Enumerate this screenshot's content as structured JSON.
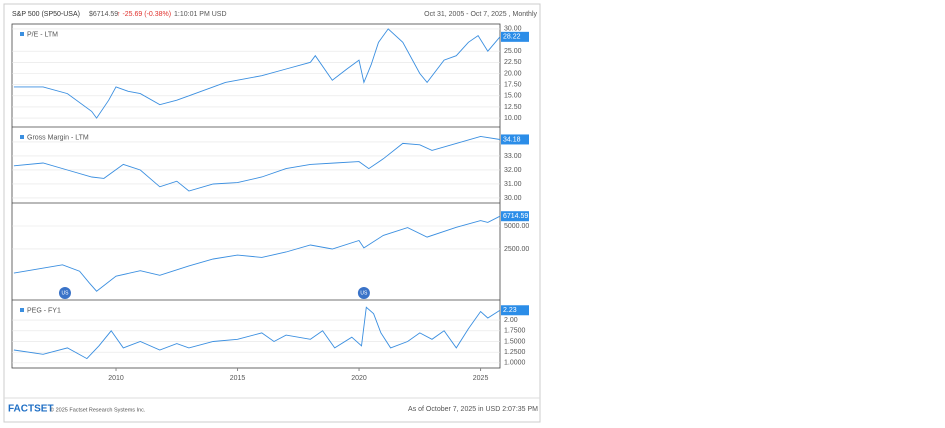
{
  "header": {
    "title": "S&P 500 (SP50-USA)",
    "price": "$6714.59",
    "change": "↑ -25.69 (-0.38%)",
    "time": "1:10:01 PM USD",
    "range": "Oct 31, 2005 - Oct 7, 2025 , Monthly"
  },
  "chart_data": [
    {
      "type": "line",
      "grid": true,
      "xlim": [
        2005.72,
        2025.8
      ],
      "ylim": [
        8,
        31.1
      ],
      "yticks": [
        {
          "value": 30,
          "label": "30.00"
        },
        {
          "value": 25,
          "label": "25.00"
        },
        {
          "value": 22.5,
          "label": "22.50"
        },
        {
          "value": 20,
          "label": "20.00"
        },
        {
          "value": 17.5,
          "label": "17.50"
        },
        {
          "value": 15,
          "label": "15.00"
        },
        {
          "value": 12.5,
          "label": "12.50"
        },
        {
          "value": 10,
          "label": "10.00"
        }
      ],
      "x": [
        2005.8,
        2007,
        2008,
        2009,
        2009.2,
        2009.7,
        2010,
        2010.5,
        2011,
        2011.8,
        2012.5,
        2013,
        2014,
        2014.5,
        2015,
        2016,
        2017,
        2018,
        2018.2,
        2018.9,
        2019.5,
        2020,
        2020.2,
        2020.5,
        2020.8,
        2021.2,
        2021.8,
        2022.5,
        2022.8,
        2023.5,
        2024,
        2024.5,
        2024.9,
        2025.3,
        2025.8
      ],
      "series": [
        {
          "name": "P/E - LTM",
          "color": "#3b8fe0",
          "values": [
            17,
            17,
            15.5,
            11.5,
            10,
            14,
            17,
            16,
            15.5,
            13,
            14,
            15,
            17,
            18,
            18.5,
            19.5,
            21,
            22.5,
            24,
            18.5,
            21,
            23,
            18,
            22,
            27,
            30,
            27,
            20,
            18,
            23,
            24,
            27,
            28.5,
            25,
            28.22
          ]
        }
      ]
    },
    {
      "type": "line",
      "grid": true,
      "xlim": [
        2005.72,
        2025.8
      ],
      "ylim": [
        29.64,
        35.07
      ],
      "yticks": [
        {
          "value": 34,
          "label": "34.00"
        },
        {
          "value": 33,
          "label": "33.00"
        },
        {
          "value": 32,
          "label": "32.00"
        },
        {
          "value": 31,
          "label": "31.00"
        },
        {
          "value": 30,
          "label": "30.00"
        }
      ],
      "x": [
        2005.8,
        2007,
        2008,
        2009,
        2009.5,
        2010.3,
        2011,
        2011.8,
        2012.5,
        2013,
        2014,
        2015,
        2016,
        2017,
        2018,
        2019,
        2020,
        2020.4,
        2021,
        2021.8,
        2022.5,
        2023,
        2024,
        2025,
        2025.8
      ],
      "series": [
        {
          "name": "Gross Margin - LTM",
          "color": "#3b8fe0",
          "values": [
            32.3,
            32.5,
            32,
            31.5,
            31.4,
            32.4,
            32,
            30.8,
            31.2,
            30.5,
            31,
            31.1,
            31.5,
            32.1,
            32.4,
            32.5,
            32.6,
            32.1,
            32.8,
            33.9,
            33.8,
            33.4,
            33.9,
            34.4,
            34.18
          ]
        }
      ]
    },
    {
      "type": "line",
      "grid": true,
      "log": true,
      "xlim": [
        2005.72,
        2025.8
      ],
      "ylim": [
        537,
        10000
      ],
      "yticks": [
        {
          "value": 5000,
          "label": "5000.00"
        },
        {
          "value": 2500,
          "label": "2500.00"
        }
      ],
      "x": [
        2005.8,
        2007.8,
        2008.5,
        2008.9,
        2009.2,
        2010,
        2011,
        2011.8,
        2013,
        2014,
        2015,
        2016,
        2017,
        2018,
        2018.9,
        2020,
        2020.2,
        2021,
        2022,
        2022.8,
        2024,
        2025,
        2025.3,
        2025.8
      ],
      "series": [
        {
          "color": "#3b8fe0",
          "values": [
            1207,
            1550,
            1280,
            900,
            700,
            1100,
            1300,
            1130,
            1500,
            1850,
            2080,
            1940,
            2280,
            2820,
            2500,
            3230,
            2580,
            3760,
            4770,
            3580,
            4800,
            5880,
            5570,
            6714.59
          ]
        }
      ],
      "events": [
        {
          "x": 2007.9,
          "label": "US"
        },
        {
          "x": 2020.2,
          "label": "US"
        }
      ]
    },
    {
      "type": "line",
      "grid": true,
      "xlim": [
        2005.72,
        2025.8
      ],
      "ylim": [
        0.88,
        2.47
      ],
      "yticks": [
        {
          "value": 2,
          "label": "2.00"
        },
        {
          "value": 1.75,
          "label": "1.7500"
        },
        {
          "value": 1.5,
          "label": "1.5000"
        },
        {
          "value": 1.25,
          "label": "1.2500"
        },
        {
          "value": 1,
          "label": "1.0000"
        }
      ],
      "xticks": [
        2010,
        2015,
        2020,
        2025
      ],
      "x": [
        2005.8,
        2007,
        2008,
        2008.8,
        2009.3,
        2009.8,
        2010.3,
        2011,
        2011.8,
        2012.5,
        2013,
        2014,
        2015,
        2016,
        2016.5,
        2017,
        2018,
        2018.5,
        2019,
        2019.7,
        2020.1,
        2020.3,
        2020.6,
        2020.9,
        2021.3,
        2022,
        2022.5,
        2023,
        2023.5,
        2024,
        2024.5,
        2025,
        2025.3,
        2025.8
      ],
      "series": [
        {
          "name": "PEG - FY1",
          "color": "#3b8fe0",
          "values": [
            1.3,
            1.2,
            1.35,
            1.1,
            1.4,
            1.75,
            1.35,
            1.5,
            1.3,
            1.45,
            1.35,
            1.5,
            1.55,
            1.7,
            1.5,
            1.65,
            1.55,
            1.75,
            1.35,
            1.6,
            1.4,
            2.3,
            2.15,
            1.7,
            1.35,
            1.5,
            1.7,
            1.55,
            1.75,
            1.35,
            1.8,
            2.2,
            2.05,
            2.23
          ]
        }
      ]
    }
  ],
  "footer": {
    "logo": "FACTSET",
    "copyright": "© 2025 Factset Research Systems Inc.",
    "asof": "As of October 7, 2025 in USD 2:07:35 PM"
  }
}
